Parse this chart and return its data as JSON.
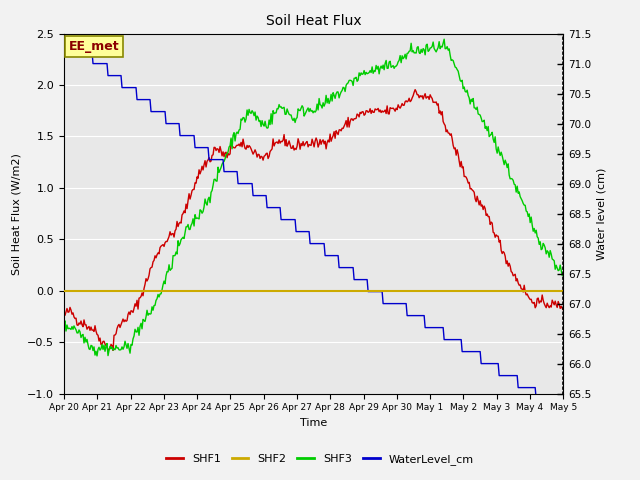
{
  "title": "Soil Heat Flux",
  "xlabel": "Time",
  "ylabel_left": "Soil Heat Flux (W/m2)",
  "ylabel_right": "Water level (cm)",
  "ylim_left": [
    -1.0,
    2.5
  ],
  "ylim_right": [
    65.5,
    71.5
  ],
  "x_tick_labels": [
    "Apr 20",
    "Apr 21",
    "Apr 22",
    "Apr 23",
    "Apr 24",
    "Apr 25",
    "Apr 26",
    "Apr 27",
    "Apr 28",
    "Apr 29",
    "Apr 30",
    "May 1",
    "May 2",
    "May 3",
    "May 4",
    "May 5"
  ],
  "annotation_text": "EE_met",
  "fig_bg_color": "#f2f2f2",
  "plot_bg_color": "#e8e8e8",
  "grid_color": "#ffffff",
  "line_colors": {
    "SHF1": "#cc0000",
    "SHF2": "#ccaa00",
    "SHF3": "#00cc00",
    "WaterLevel": "#0000cc"
  },
  "legend_labels": [
    "SHF1",
    "SHF2",
    "SHF3",
    "WaterLevel_cm"
  ],
  "yticks_left": [
    -1.0,
    -0.5,
    0.0,
    0.5,
    1.0,
    1.5,
    2.0,
    2.5
  ],
  "yticks_right": [
    65.5,
    66.0,
    66.5,
    67.0,
    67.5,
    68.0,
    68.5,
    69.0,
    69.5,
    70.0,
    70.5,
    71.0,
    71.5
  ]
}
